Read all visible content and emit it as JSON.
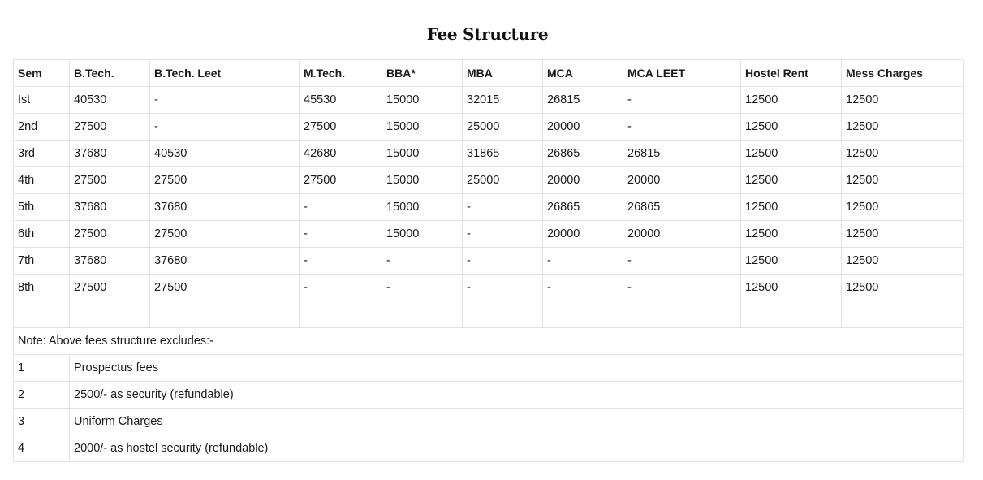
{
  "page": {
    "title": "Fee Structure"
  },
  "table": {
    "headers": [
      "Sem",
      "B.Tech.",
      "B.Tech. Leet",
      "M.Tech.",
      "BBA*",
      "MBA",
      "MCA",
      "MCA LEET",
      "Hostel Rent",
      "Mess Charges"
    ],
    "rows": [
      [
        "Ist",
        "40530",
        "-",
        "45530",
        "15000",
        "32015",
        "26815",
        "-",
        "12500",
        "12500"
      ],
      [
        "2nd",
        "27500",
        "-",
        "27500",
        "15000",
        "25000",
        "20000",
        "-",
        "12500",
        "12500"
      ],
      [
        "3rd",
        "37680",
        "40530",
        "42680",
        "15000",
        "31865",
        "26865",
        "26815",
        "12500",
        "12500"
      ],
      [
        "4th",
        "27500",
        "27500",
        "27500",
        "15000",
        "25000",
        "20000",
        "20000",
        "12500",
        "12500"
      ],
      [
        "5th",
        "37680",
        "37680",
        "-",
        "15000",
        "-",
        "26865",
        "26865",
        "12500",
        "12500"
      ],
      [
        "6th",
        "27500",
        "27500",
        "-",
        "15000",
        "-",
        "20000",
        "20000",
        "12500",
        "12500"
      ],
      [
        "7th",
        "37680",
        "37680",
        "-",
        "-",
        "-",
        "-",
        "-",
        "12500",
        "12500"
      ],
      [
        "8th",
        "27500",
        "27500",
        "-",
        "-",
        "-",
        "-",
        "-",
        "12500",
        "12500"
      ]
    ]
  },
  "notes": {
    "heading": "Note:  Above fees structure excludes:-",
    "items": [
      {
        "num": "1",
        "text": "Prospectus fees"
      },
      {
        "num": "2",
        "text": "2500/- as security (refundable)"
      },
      {
        "num": "3",
        "text": "Uniform Charges"
      },
      {
        "num": "4",
        "text": "2000/- as hostel security (refundable)"
      }
    ]
  }
}
